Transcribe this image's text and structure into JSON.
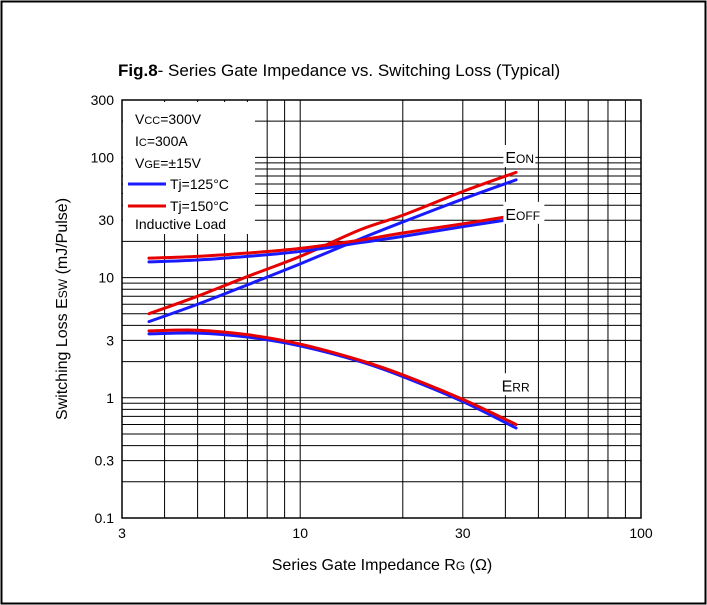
{
  "chart_data": {
    "type": "line",
    "title_bold": "Fig.8",
    "title_rest": "- Series Gate Impedance vs. Switching Loss  (Typical)",
    "xlabel": "Series Gate Impedance R",
    "xlabel_sub": "G",
    "xlabel_unit": " (Ω)",
    "ylabel": "Switching Loss E",
    "ylabel_sub": "SW",
    "ylabel_unit": " (mJ/Pulse)",
    "x_scale": "log",
    "y_scale": "log",
    "xlim": [
      3,
      100
    ],
    "ylim": [
      0.1,
      300
    ],
    "x_ticks": [
      {
        "v": 3,
        "label": "3"
      },
      {
        "v": 10,
        "label": "10"
      },
      {
        "v": 30,
        "label": "30"
      },
      {
        "v": 100,
        "label": "100"
      }
    ],
    "y_ticks": [
      {
        "v": 0.1,
        "label": "0.1"
      },
      {
        "v": 0.3,
        "label": "0.3"
      },
      {
        "v": 1,
        "label": "1"
      },
      {
        "v": 3,
        "label": "3"
      },
      {
        "v": 10,
        "label": "10"
      },
      {
        "v": 30,
        "label": "30"
      },
      {
        "v": 100,
        "label": "100"
      },
      {
        "v": 300,
        "label": "300"
      }
    ],
    "grid": true,
    "conditions": [
      {
        "main": "V",
        "sub": "CC",
        "rest": "=300V"
      },
      {
        "main": "I",
        "sub": "C",
        "rest": "=300A"
      },
      {
        "main": "V",
        "sub": "GE",
        "rest": "=±15V"
      }
    ],
    "legend": [
      {
        "label": "Tj=125°C",
        "color": "#1a1aff"
      },
      {
        "label": "Tj=150°C",
        "color": "#e60000"
      }
    ],
    "load_note": "Inductive Load",
    "curve_labels": [
      {
        "main": "E",
        "sub": "ON",
        "x": 40,
        "y": 95
      },
      {
        "main": "E",
        "sub": "OFF",
        "x": 40,
        "y": 32
      },
      {
        "main": "E",
        "sub": "RR",
        "x": 39,
        "y": 1.2
      }
    ],
    "series": [
      {
        "group": "Eon",
        "temp": "Tj=125°C",
        "color": "#1a1aff",
        "x": [
          3.6,
          5,
          7,
          10,
          15,
          20,
          30,
          43
        ],
        "y": [
          4.3,
          6,
          8.7,
          13,
          21,
          29,
          45,
          65
        ]
      },
      {
        "group": "Eon",
        "temp": "Tj=150°C",
        "color": "#e60000",
        "x": [
          3.6,
          5,
          7,
          10,
          15,
          20,
          30,
          43
        ],
        "y": [
          5,
          7,
          10.2,
          15,
          25,
          33,
          52,
          75
        ]
      },
      {
        "group": "Eoff",
        "temp": "Tj=125°C",
        "color": "#1a1aff",
        "x": [
          3.6,
          5,
          7,
          10,
          15,
          20,
          30,
          43
        ],
        "y": [
          13.5,
          14,
          15,
          16.5,
          19.5,
          22,
          26.5,
          31
        ]
      },
      {
        "group": "Eoff",
        "temp": "Tj=150°C",
        "color": "#e60000",
        "x": [
          3.6,
          5,
          7,
          10,
          15,
          20,
          30,
          43
        ],
        "y": [
          14.5,
          15,
          16,
          17.5,
          20.5,
          23.5,
          28,
          33
        ]
      },
      {
        "group": "Err",
        "temp": "Tj=125°C",
        "color": "#1a1aff",
        "x": [
          3.6,
          5,
          7,
          10,
          15,
          20,
          30,
          43
        ],
        "y": [
          3.4,
          3.45,
          3.2,
          2.7,
          2.0,
          1.5,
          0.93,
          0.56
        ]
      },
      {
        "group": "Err",
        "temp": "Tj=150°C",
        "color": "#e60000",
        "x": [
          3.6,
          5,
          7,
          10,
          15,
          20,
          30,
          43
        ],
        "y": [
          3.6,
          3.65,
          3.35,
          2.8,
          2.05,
          1.55,
          0.97,
          0.6
        ]
      }
    ]
  }
}
